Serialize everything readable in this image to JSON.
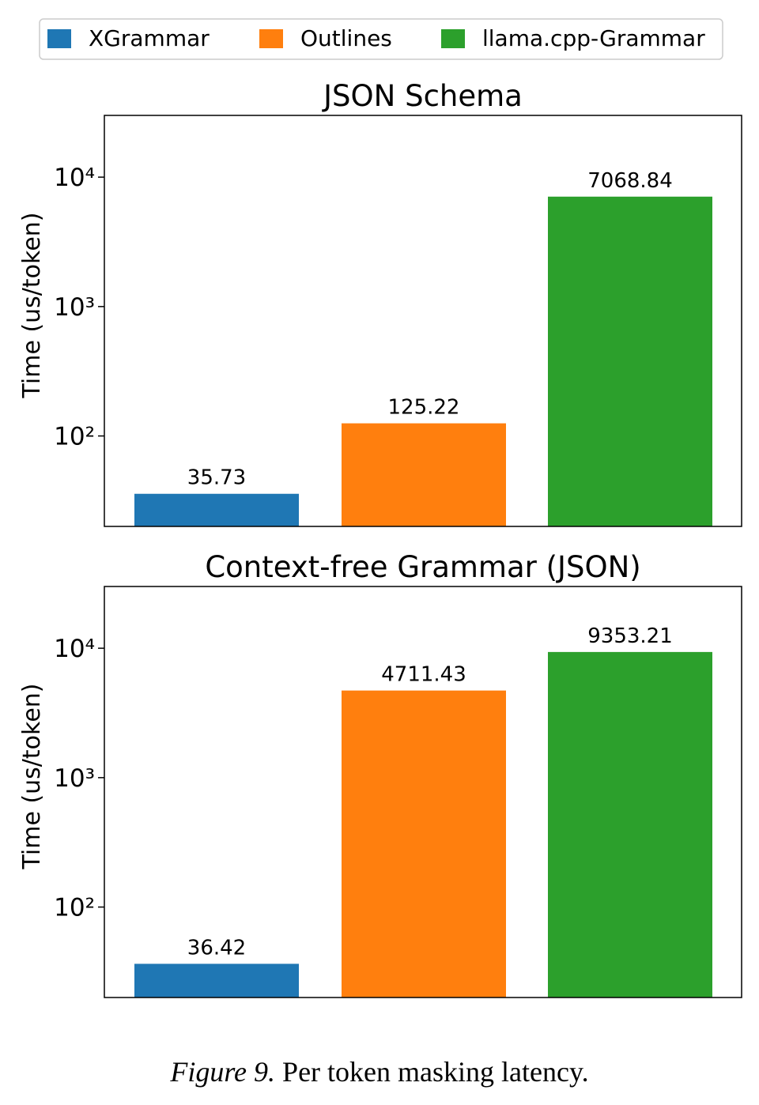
{
  "legend": [
    {
      "name": "XGrammar",
      "color": "#1f77b4"
    },
    {
      "name": "Outlines",
      "color": "#ff7f0e"
    },
    {
      "name": "llama.cpp-Grammar",
      "color": "#2ca02c"
    }
  ],
  "chart_data": [
    {
      "type": "bar",
      "title": "JSON Schema",
      "y_label": "Time (us/token)",
      "values": [
        35.73,
        125.22,
        7068.84
      ],
      "colors": [
        "#1f77b4",
        "#ff7f0e",
        "#2ca02c"
      ],
      "log_scale": true,
      "ylim": [
        20,
        30000
      ],
      "yticks": [
        {
          "value": 100,
          "label": "10²"
        },
        {
          "value": 1000,
          "label": "10³"
        },
        {
          "value": 10000,
          "label": "10⁴"
        }
      ]
    },
    {
      "type": "bar",
      "title": "Context-free Grammar (JSON)",
      "y_label": "Time (us/token)",
      "values": [
        36.42,
        4711.43,
        9353.21
      ],
      "colors": [
        "#1f77b4",
        "#ff7f0e",
        "#2ca02c"
      ],
      "log_scale": true,
      "ylim": [
        20,
        30000
      ],
      "yticks": [
        {
          "value": 100,
          "label": "10²"
        },
        {
          "value": 1000,
          "label": "10³"
        },
        {
          "value": 10000,
          "label": "10⁴"
        }
      ]
    }
  ],
  "caption": {
    "label": "Figure 9.",
    "text": "Per token masking latency."
  }
}
